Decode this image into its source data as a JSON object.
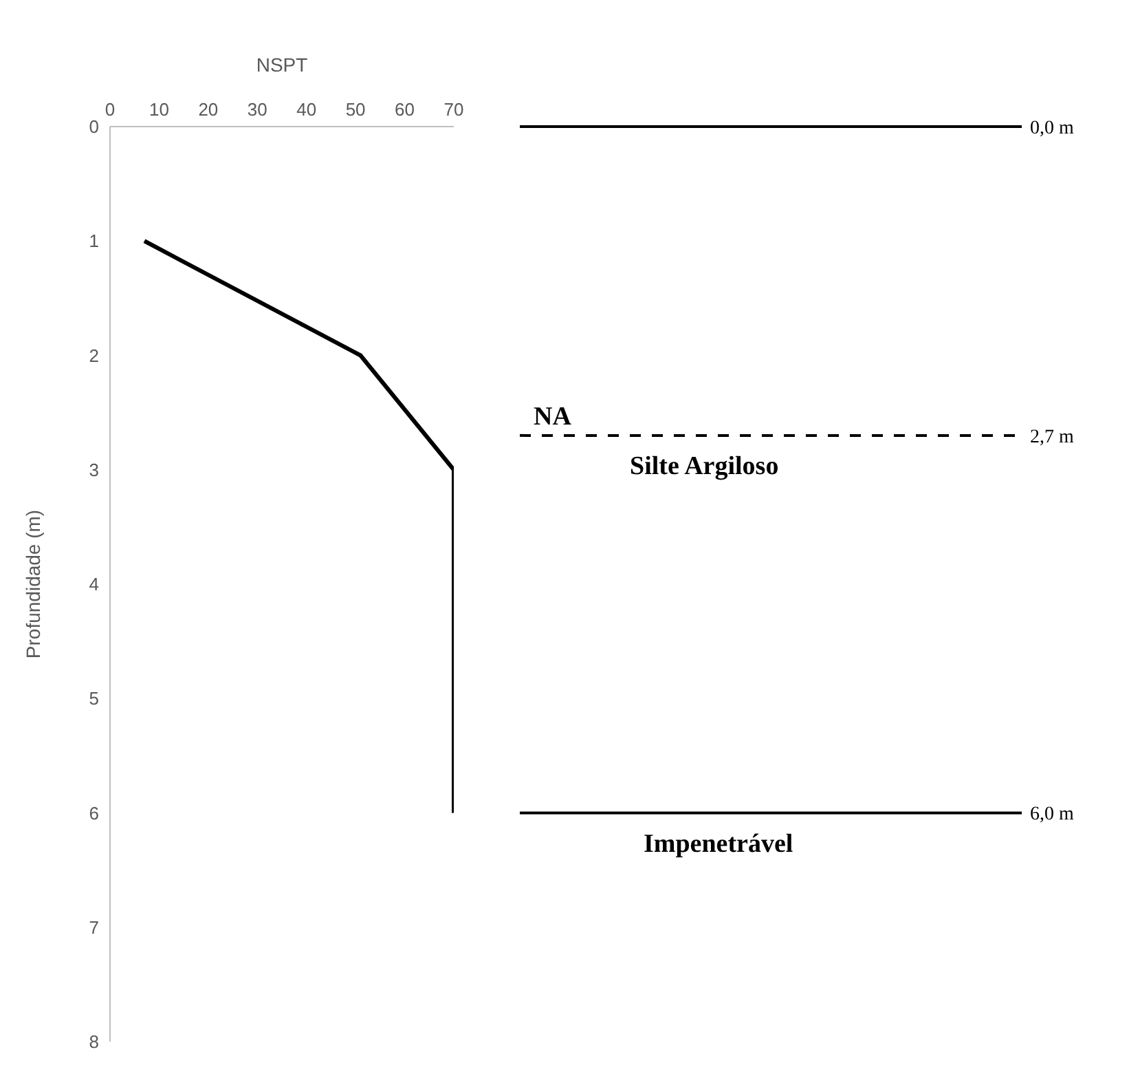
{
  "chart_data": {
    "type": "line",
    "xlabel": "NSPT",
    "ylabel": "Profundidade (m)",
    "x": [
      7,
      51,
      70,
      70
    ],
    "series": [
      {
        "color": "#000000",
        "values": [
          1,
          2,
          3,
          6
        ]
      }
    ],
    "xlim": [
      0,
      70
    ],
    "xticks": [
      0,
      10,
      20,
      30,
      40,
      50,
      60,
      70
    ],
    "ylim": [
      8,
      0
    ],
    "yticks": [
      0,
      1,
      2,
      3,
      4,
      5,
      6,
      7,
      8
    ],
    "marker": "none",
    "line_style": "solid",
    "ref_lines": [
      {
        "axis": "y",
        "value": 0,
        "label": "0,0 m",
        "color": "#000000",
        "line_style": "solid"
      },
      {
        "axis": "y",
        "value": 2.7,
        "label": "2,7 m",
        "color": "#000000",
        "line_style": "dashed"
      },
      {
        "axis": "y",
        "value": 6,
        "label": "6,0 m",
        "color": "#000000",
        "line_style": "solid"
      }
    ],
    "annotations": [
      {
        "text": "NA",
        "y": 2.7
      },
      {
        "text": "Silte Argiloso",
        "y": 2.7
      },
      {
        "text": "Impenetrável",
        "y": 6
      }
    ]
  }
}
